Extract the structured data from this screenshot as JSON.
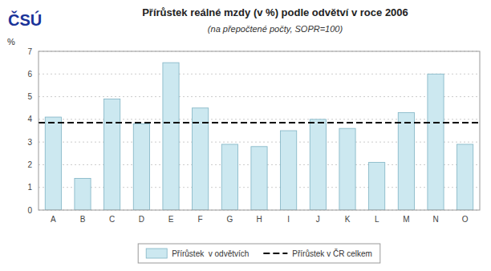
{
  "chart_data": {
    "type": "bar",
    "title": "Přírůstek reálné mzdy (v %) podle odvětví v roce 2006",
    "subtitle": "(na přepočtené počty, SOPR=100)",
    "y_label": "%",
    "annotations": [
      "ČSÚ"
    ],
    "categories": [
      "A",
      "B",
      "C",
      "D",
      "E",
      "F",
      "G",
      "H",
      "I",
      "J",
      "K",
      "L",
      "M",
      "N",
      "O"
    ],
    "series": [
      {
        "name": "Přírůstek  v odvětvích",
        "color": "#cce8f0",
        "values": [
          4.1,
          1.4,
          4.9,
          3.8,
          6.5,
          4.5,
          2.9,
          2.8,
          3.5,
          4.0,
          3.6,
          2.1,
          4.3,
          6.0,
          2.9
        ]
      }
    ],
    "reference_line": {
      "name": "Přírůstek v ČR celkem",
      "value": 3.85,
      "color": "#000000",
      "line_style": "dashed"
    },
    "ylim": [
      0,
      7
    ],
    "yticks": [
      0,
      1,
      2,
      3,
      4,
      5,
      6,
      7
    ],
    "grid": true,
    "legend": "bottom"
  }
}
